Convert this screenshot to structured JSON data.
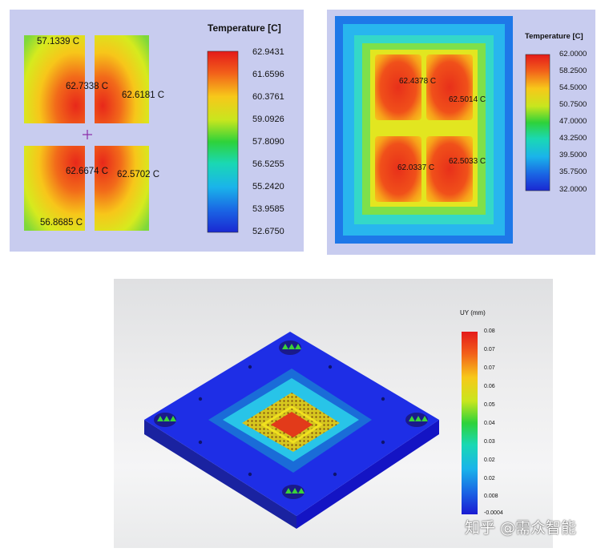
{
  "panel1": {
    "legend_title": "Temperature [C]",
    "ticks": [
      "62.9431",
      "61.6596",
      "60.3761",
      "59.0926",
      "57.8090",
      "56.5255",
      "55.2420",
      "53.9585",
      "52.6750"
    ],
    "probes": [
      "57.1339 C",
      "62.7338 C",
      "62.6181 C",
      "62.6674 C",
      "62.5702 C",
      "56.8685 C"
    ]
  },
  "panel2": {
    "legend_title": "Temperature [C]",
    "ticks": [
      "62.0000",
      "58.2500",
      "54.5000",
      "50.7500",
      "47.0000",
      "43.2500",
      "39.5000",
      "35.7500",
      "32.0000"
    ],
    "probes": [
      "62.4378 C",
      "62.5014 C",
      "62.0337 C",
      "62.5033 C"
    ]
  },
  "panel3": {
    "legend_title": "UY (mm)",
    "ticks": [
      "0.08",
      "0.07",
      "0.07",
      "0.06",
      "0.05",
      "0.04",
      "0.03",
      "0.02",
      "0.02",
      "0.008",
      "-0.0004"
    ]
  },
  "watermark": "知乎 @需众智能",
  "colors": {
    "panel_bg": "#c8ccef",
    "hot": "#e6261a",
    "cool": "#1a3cdc"
  }
}
